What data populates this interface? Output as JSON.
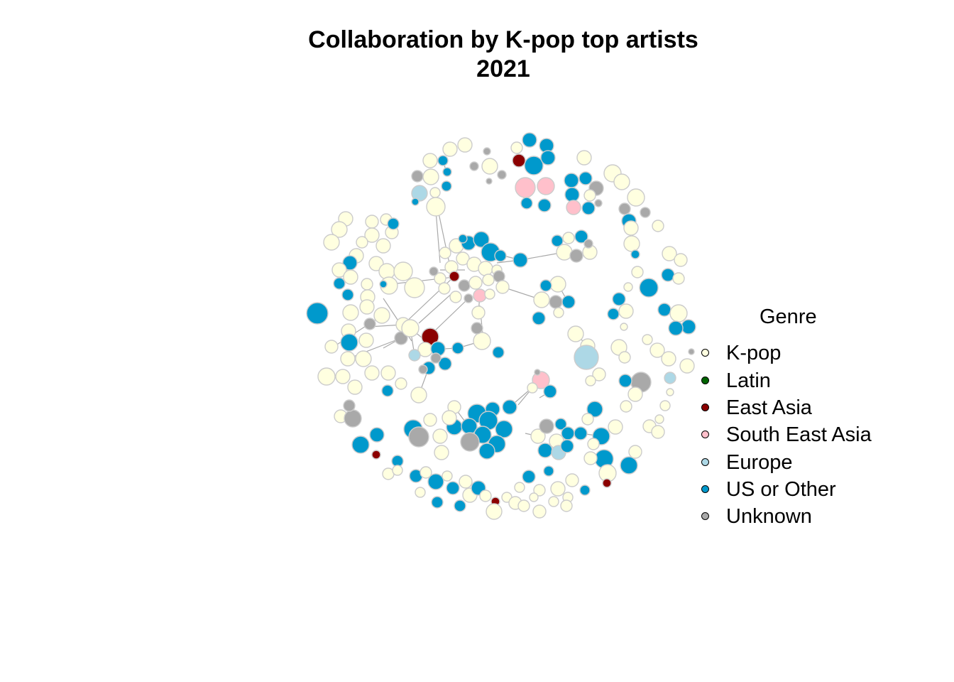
{
  "title": {
    "line1": "Collaboration by K-pop top artists",
    "line2": "2021"
  },
  "legend": {
    "title": "Genre",
    "items": [
      {
        "label": "K-pop",
        "color": "#ffffe0"
      },
      {
        "label": "Latin",
        "color": "#006400"
      },
      {
        "label": "East Asia",
        "color": "#8b0000"
      },
      {
        "label": "South East Asia",
        "color": "#ffc0cb"
      },
      {
        "label": "Europe",
        "color": "#add8e6"
      },
      {
        "label": "US or Other",
        "color": "#0099cc"
      },
      {
        "label": "Unknown",
        "color": "#a9a9a9"
      }
    ]
  },
  "style": {
    "node_border": "#cccccc",
    "edge_color": "#a9a9a9"
  }
}
